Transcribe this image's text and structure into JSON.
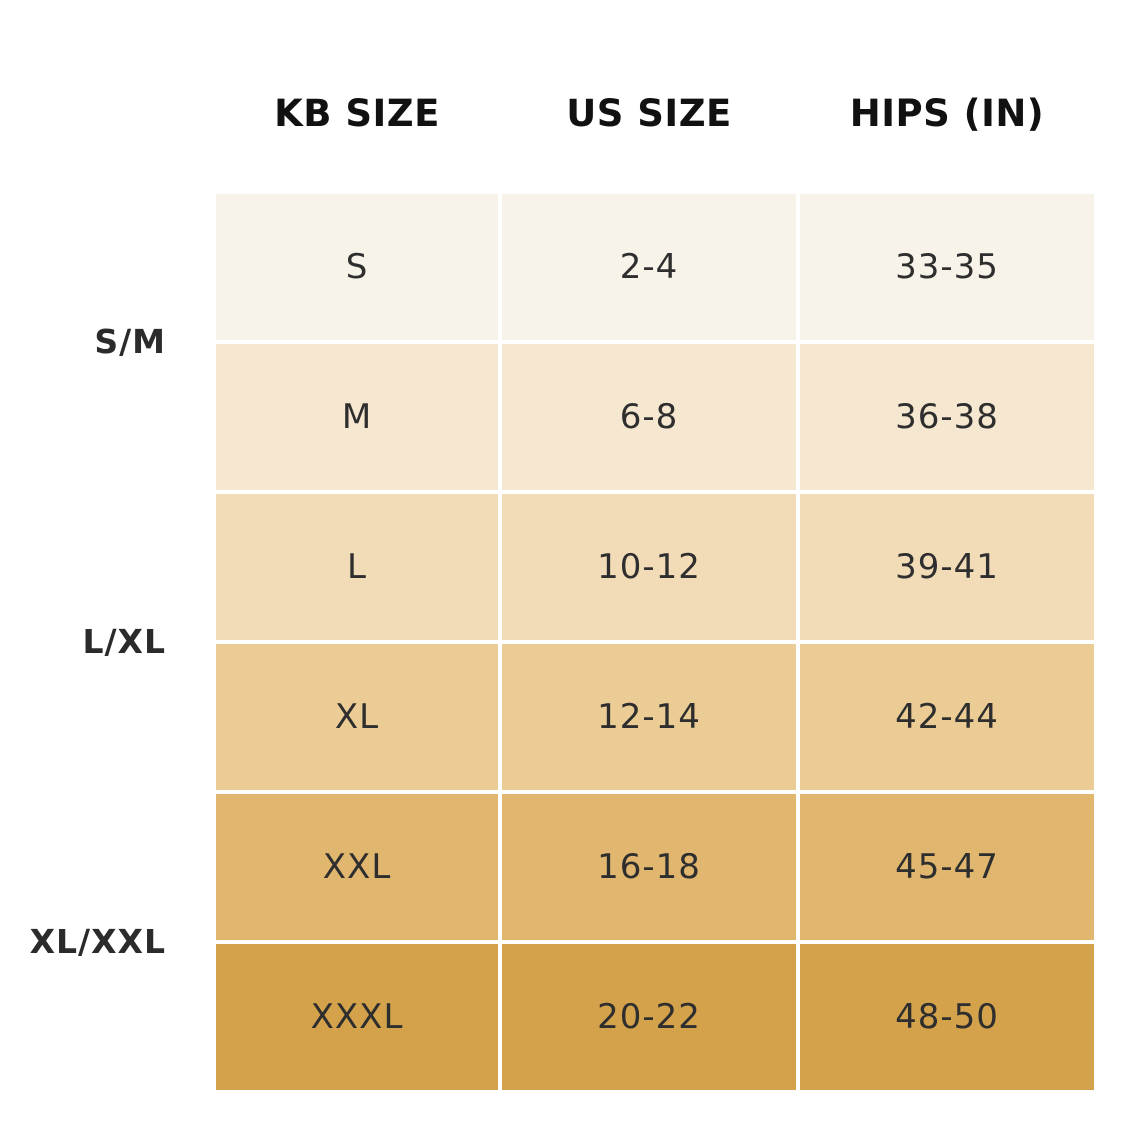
{
  "headers": {
    "kb_size": "KB SIZE",
    "us_size": "US SIZE",
    "hips": "HIPS (IN)"
  },
  "groups": [
    {
      "label": "S/M"
    },
    {
      "label": "L/XL"
    },
    {
      "label": "XL/XXL"
    }
  ],
  "rows": [
    {
      "kb": "S",
      "us": "2-4",
      "hips": "33-35",
      "color": "#f8f3e8"
    },
    {
      "kb": "M",
      "us": "6-8",
      "hips": "36-38",
      "color": "#f5e7d0"
    },
    {
      "kb": "L",
      "us": "10-12",
      "hips": "39-41",
      "color": "#f2dbb7"
    },
    {
      "kb": "XL",
      "us": "12-14",
      "hips": "42-44",
      "color": "#ebcc95"
    },
    {
      "kb": "XXL",
      "us": "16-18",
      "hips": "45-47",
      "color": "#e1b76f"
    },
    {
      "kb": "XXXL",
      "us": "20-22",
      "hips": "48-50",
      "color": "#d3a24a"
    }
  ]
}
